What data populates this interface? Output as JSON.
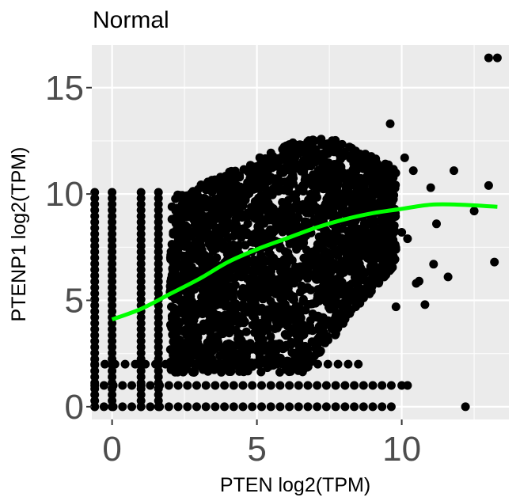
{
  "chart_data": {
    "type": "scatter",
    "title": "Normal",
    "xlabel": "PTEN log2(TPM)",
    "ylabel": "PTENP1 log2(TPM)",
    "xlim": [
      -0.7,
      13.7
    ],
    "ylim": [
      -0.6,
      17.0
    ],
    "x_ticks": [
      0,
      5,
      10
    ],
    "x_tick_labels": [
      "0",
      "5",
      "10"
    ],
    "y_ticks": [
      0,
      5,
      10,
      15
    ],
    "y_tick_labels": [
      "0",
      "5",
      "10",
      "15"
    ],
    "grid": true,
    "background_color": "#EBEBEB",
    "point_color": "#000000",
    "smooth_color": "#00FF00",
    "smooth_curve": {
      "x": [
        0,
        1,
        2,
        3,
        4,
        5,
        6,
        7,
        8,
        9,
        10,
        11,
        12,
        13.3
      ],
      "y": [
        4.1,
        4.6,
        5.3,
        6.0,
        6.8,
        7.4,
        7.9,
        8.4,
        8.8,
        9.1,
        9.3,
        9.5,
        9.5,
        9.4
      ]
    },
    "outlier_points": {
      "x": [
        13.0,
        13.3,
        9.6,
        10.1,
        10.4,
        11.0,
        11.8,
        12.5,
        13.0,
        13.2,
        10.0,
        10.2,
        10.6,
        11.1,
        11.6,
        12.2,
        10.0,
        10.2,
        9.8,
        10.5,
        10.8,
        11.2
      ],
      "y": [
        16.4,
        16.4,
        13.3,
        11.7,
        11.1,
        10.3,
        11.1,
        9.2,
        10.4,
        6.8,
        1.0,
        1.0,
        5.9,
        6.7,
        6.1,
        0.0,
        8.2,
        7.9,
        4.7,
        5.8,
        4.8,
        8.6
      ]
    }
  }
}
